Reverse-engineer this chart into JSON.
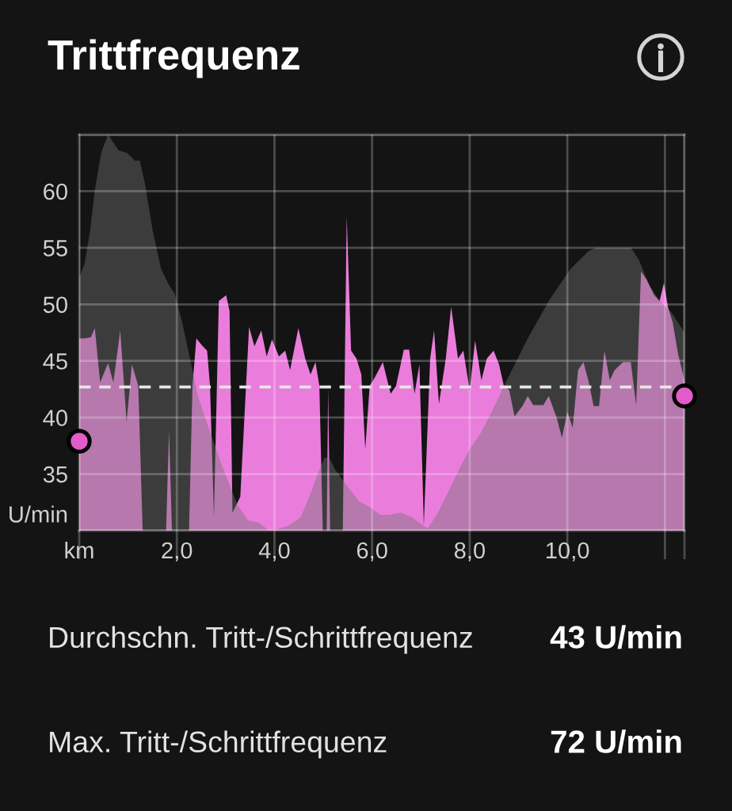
{
  "chart_data": {
    "type": "area",
    "title": "Trittfrequenz",
    "ylabel": "U/min",
    "xlim": [
      0,
      12.4
    ],
    "ylim": [
      30,
      65
    ],
    "xticks": [
      {
        "value": 0,
        "label": "km"
      },
      {
        "value": 2,
        "label": "2,0"
      },
      {
        "value": 4,
        "label": "4,0"
      },
      {
        "value": 6,
        "label": "6,0"
      },
      {
        "value": 8,
        "label": "8,0"
      },
      {
        "value": 10,
        "label": "10,0"
      },
      {
        "value": 12,
        "label": null
      },
      {
        "value": 12.4,
        "label": null
      }
    ],
    "yticks": [
      {
        "value": 30,
        "label": null
      },
      35,
      40,
      45,
      50,
      55,
      60,
      {
        "value": 65,
        "label": null
      }
    ],
    "grid": true,
    "ref_lines": [
      {
        "axis": "y",
        "value": 42.7,
        "color": "#e6e6e6",
        "line_style": "dashed"
      }
    ],
    "series": [
      {
        "color": "#ea7ddb",
        "x": [
          0,
          0.11,
          0.24,
          0.32,
          0.38,
          0.43,
          0.59,
          0.7,
          0.84,
          0.92,
          0.97,
          1.08,
          1.21,
          1.3,
          1.78,
          1.84,
          1.9,
          2.25,
          2.32,
          2.4,
          2.49,
          2.62,
          2.68,
          2.76,
          2.86,
          3.01,
          3.08,
          3.14,
          3.3,
          3.48,
          3.59,
          3.73,
          3.84,
          3.95,
          4.09,
          4.22,
          4.32,
          4.49,
          4.63,
          4.74,
          4.84,
          4.92,
          4.99,
          5.07,
          5.1,
          5.14,
          5.4,
          5.48,
          5.57,
          5.68,
          5.78,
          5.86,
          5.95,
          6.05,
          6.22,
          6.38,
          6.49,
          6.65,
          6.76,
          6.87,
          6.97,
          7.06,
          7.19,
          7.27,
          7.37,
          7.51,
          7.62,
          7.76,
          7.87,
          8.0,
          8.11,
          8.24,
          8.35,
          8.49,
          8.6,
          8.7,
          8.81,
          8.92,
          9.08,
          9.19,
          9.3,
          9.51,
          9.62,
          9.78,
          9.89,
          10.0,
          10.11,
          10.22,
          10.33,
          10.43,
          10.54,
          10.65,
          10.76,
          10.87,
          10.97,
          11.14,
          11.3,
          11.41,
          11.51,
          11.62,
          11.78,
          11.89,
          11.98,
          12.06,
          12.16,
          12.27,
          12.4
        ],
        "values": [
          47.0,
          47.0,
          47.1,
          47.9,
          45.2,
          43.1,
          44.8,
          43.1,
          47.7,
          42.8,
          39.6,
          44.7,
          42.8,
          30.0,
          30.0,
          38.9,
          30.0,
          30.0,
          42.8,
          47.0,
          46.5,
          45.9,
          42.8,
          31.2,
          50.3,
          50.8,
          49.4,
          31.6,
          33.0,
          48.0,
          46.3,
          47.7,
          45.4,
          46.9,
          45.4,
          45.9,
          44.2,
          47.9,
          45.2,
          43.8,
          44.9,
          42.8,
          30.0,
          30.0,
          42.6,
          30.0,
          30.0,
          57.8,
          45.9,
          45.2,
          43.8,
          37.2,
          42.8,
          43.5,
          44.9,
          42.1,
          42.8,
          46.0,
          46.0,
          42.1,
          44.7,
          30.5,
          45.2,
          47.7,
          41.2,
          45.2,
          49.8,
          45.2,
          45.9,
          42.4,
          46.8,
          43.3,
          45.2,
          45.9,
          44.7,
          42.8,
          42.4,
          40.1,
          41.0,
          41.9,
          41.1,
          41.1,
          41.9,
          40.0,
          38.2,
          40.5,
          39.1,
          44.2,
          44.9,
          43.3,
          41.0,
          41.0,
          45.9,
          43.3,
          44.2,
          44.9,
          44.9,
          41.1,
          52.9,
          52.2,
          50.8,
          50.3,
          51.9,
          49.8,
          48.4,
          45.6,
          43.3
        ]
      },
      {
        "color": "#717171",
        "x": [
          0,
          0.11,
          0.22,
          0.32,
          0.45,
          0.59,
          0.7,
          0.81,
          0.97,
          1.14,
          1.24,
          1.35,
          1.51,
          1.68,
          1.84,
          1.95,
          2.11,
          2.27,
          2.43,
          2.65,
          2.92,
          3.24,
          3.46,
          3.68,
          3.89,
          4.11,
          4.32,
          4.54,
          4.76,
          4.92,
          5.03,
          5.14,
          5.24,
          5.41,
          5.57,
          5.73,
          5.95,
          6.16,
          6.38,
          6.59,
          6.81,
          7.03,
          7.14,
          7.35,
          7.57,
          7.78,
          8.0,
          8.22,
          8.43,
          8.76,
          9.19,
          9.62,
          10.06,
          10.43,
          10.59,
          10.92,
          11.3,
          11.46,
          11.68,
          11.89,
          12.11,
          12.27,
          12.4
        ],
        "values": [
          52.3,
          53.6,
          56.4,
          60.1,
          63.4,
          65.0,
          64.3,
          63.6,
          63.4,
          62.7,
          62.7,
          60.6,
          56.4,
          53.1,
          51.7,
          51.0,
          48.4,
          45.2,
          41.9,
          39.1,
          35.8,
          32.3,
          30.9,
          30.7,
          30.0,
          30.2,
          30.5,
          31.2,
          33.5,
          35.4,
          36.5,
          36.3,
          35.4,
          34.4,
          33.5,
          32.6,
          32.1,
          31.4,
          31.4,
          31.6,
          31.2,
          30.5,
          30.2,
          31.6,
          33.5,
          35.4,
          37.2,
          38.6,
          40.3,
          43.3,
          47.0,
          50.3,
          53.1,
          54.7,
          55.0,
          55.0,
          55.0,
          54.0,
          51.7,
          50.3,
          49.4,
          48.4,
          47.5
        ]
      },
      {
        "type": "scatter",
        "color": "#e35bc9",
        "marker": "circle",
        "x": [
          0,
          12.4
        ],
        "values": [
          37.9,
          41.9
        ]
      }
    ],
    "annotations": [
      "Durchschn. Tritt-/Schrittfrequenz",
      "43 U/min",
      "Max. Tritt-/Schrittfrequenz",
      "72 U/min"
    ]
  }
}
